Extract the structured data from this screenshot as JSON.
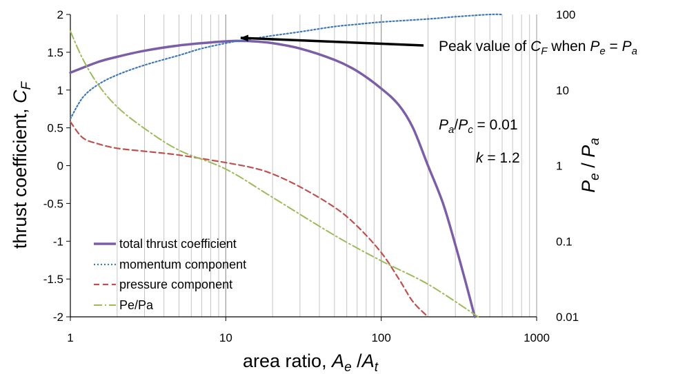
{
  "chart_data": {
    "type": "line",
    "x_scale": "log",
    "xlim": [
      1,
      1000
    ],
    "ylim": [
      -2,
      2
    ],
    "y2_scale": "log",
    "y2lim": [
      0.01,
      100
    ],
    "grid": "vertical",
    "legend_position": "bottom-left",
    "x_ticks": [
      "1",
      "10",
      "100",
      "1000"
    ],
    "y_ticks": [
      "-2",
      "-1.5",
      "-1",
      "-0.5",
      "0",
      "0.5",
      "1",
      "1.5",
      "2"
    ],
    "y2_ticks": [
      "0.01",
      "0.1",
      "1",
      "10",
      "100"
    ],
    "xlabel": {
      "main": "area ratio, ",
      "v1": "A",
      "s1": "e",
      "sep": " /",
      "v2": "A",
      "s2": "t"
    },
    "ylabel": {
      "main": "thrust coefficient, ",
      "v": "C",
      "s": "F"
    },
    "y2label": {
      "v1": "P",
      "s1": "e",
      "sep": " / ",
      "v2": "P",
      "s2": "a"
    },
    "annotations": {
      "peak": {
        "prefix": "Peak value of ",
        "v1": "C",
        "s1": "F",
        "mid": " when ",
        "v2": "P",
        "s2": "e",
        "eq": " = ",
        "v3": "P",
        "s3": "a"
      },
      "pressure_ratio": {
        "v1": "P",
        "s1": "a",
        "sep": "/",
        "v2": "P",
        "s2": "c",
        "rest": " = 0.01"
      },
      "k": {
        "v": "k",
        "rest": " = 1.2"
      }
    },
    "series": [
      {
        "name": "total thrust coefficient",
        "axis": "left",
        "color": "#7b5ea7",
        "style": "solid",
        "x": [
          1,
          1.5,
          2,
          3,
          5,
          8,
          10,
          12,
          15,
          20,
          30,
          50,
          70,
          100,
          130,
          160,
          200,
          250,
          300,
          350,
          400
        ],
        "y": [
          1.23,
          1.37,
          1.44,
          1.52,
          1.59,
          1.63,
          1.645,
          1.65,
          1.645,
          1.62,
          1.55,
          1.4,
          1.25,
          1.02,
          0.8,
          0.5,
          0.0,
          -0.5,
          -1.05,
          -1.55,
          -2.0
        ]
      },
      {
        "name": "momentum component",
        "axis": "left",
        "color": "#3f78b8",
        "style": "dotted",
        "x": [
          1,
          1.2,
          1.5,
          2,
          3,
          5,
          7,
          10,
          12,
          15,
          20,
          30,
          50,
          70,
          100,
          200,
          300,
          500,
          600
        ],
        "y": [
          0.62,
          0.9,
          1.07,
          1.2,
          1.33,
          1.46,
          1.55,
          1.62,
          1.65,
          1.68,
          1.72,
          1.77,
          1.84,
          1.87,
          1.9,
          1.94,
          1.97,
          2.0,
          2.0
        ]
      },
      {
        "name": "pressure component",
        "axis": "left",
        "color": "#c0504d",
        "style": "dashed",
        "x": [
          1,
          1.2,
          1.5,
          2,
          3,
          5,
          10,
          15,
          20,
          30,
          50,
          70,
          100,
          130,
          160,
          200
        ],
        "y": [
          0.58,
          0.37,
          0.29,
          0.23,
          0.19,
          0.14,
          0.04,
          -0.03,
          -0.11,
          -0.28,
          -0.55,
          -0.8,
          -1.15,
          -1.5,
          -1.8,
          -2.0
        ]
      },
      {
        "name": "Pe/Pa",
        "axis": "right",
        "color": "#9bbb59",
        "style": "dash-dot",
        "x": [
          1,
          1.2,
          1.5,
          2,
          3,
          5,
          10,
          20,
          50,
          100,
          200,
          420
        ],
        "y": [
          60,
          26,
          12,
          6.0,
          3.1,
          1.6,
          0.9,
          0.38,
          0.12,
          0.055,
          0.027,
          0.01
        ]
      }
    ]
  }
}
